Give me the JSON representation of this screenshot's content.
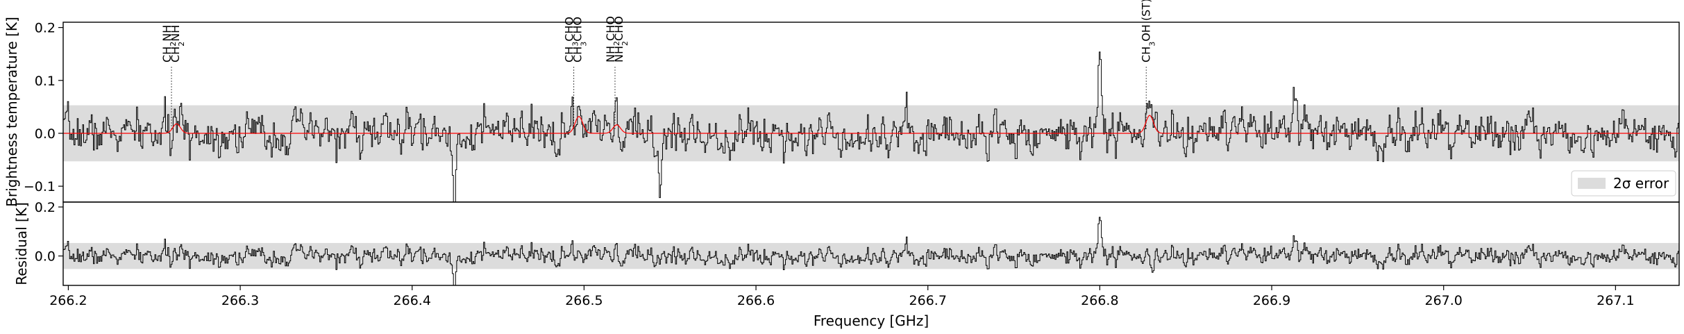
{
  "colors": {
    "spectrum": "#000000",
    "model": "#ff0000",
    "error_band": "#dcdcdc",
    "marker_line": "#555555"
  },
  "chart_data": [
    {
      "type": "line",
      "panel": "top",
      "xlim": [
        266.197,
        267.137
      ],
      "ylim": [
        -0.13,
        0.21
      ],
      "ylabel": "Brightness temperature [K]",
      "xlabel": "",
      "yticks": [
        -0.1,
        0.0,
        0.1,
        0.2
      ],
      "ytick_labels": [
        "−0.1",
        "0.0",
        "0.1",
        "0.2"
      ],
      "grid": false,
      "error_band": [
        -0.053,
        0.053
      ],
      "legend": {
        "position": "lower-right",
        "entries": [
          {
            "label": "2σ error"
          }
        ]
      },
      "series": [
        {
          "role": "observed",
          "style": "step",
          "noise_rms": 0.026,
          "line_color": "#000000"
        },
        {
          "role": "model",
          "style": "line",
          "line_color": "#ff0000"
        }
      ],
      "model_peaks": [
        {
          "x": 266.263,
          "y": 0.018
        },
        {
          "x": 266.497,
          "y": 0.032
        },
        {
          "x": 266.519,
          "y": 0.016
        },
        {
          "x": 266.829,
          "y": 0.034
        }
      ],
      "observed_features": [
        {
          "x": 266.8,
          "y": 0.15
        },
        {
          "x": 266.424,
          "y": -0.11
        },
        {
          "x": 266.544,
          "y": -0.1
        },
        {
          "x": 266.913,
          "y": 0.075
        }
      ],
      "line_markers": [
        {
          "x": 266.26,
          "label_main": "CH",
          "label_sub": "2",
          "label_rest": "NH"
        },
        {
          "x": 266.26,
          "label_main": "CH",
          "label_sub": "2",
          "label_rest": "NH"
        },
        {
          "x": 266.494,
          "label_main": "CH",
          "label_sub": "3",
          "label_rest": "CHO"
        },
        {
          "x": 266.494,
          "label_main": "CH",
          "label_sub": "3",
          "label_rest": "CHO"
        },
        {
          "x": 266.518,
          "label_main": "NH",
          "label_sub": "2",
          "label_rest": "CHO"
        },
        {
          "x": 266.518,
          "label_main": "NH",
          "label_sub": "2",
          "label_rest": "CHO"
        },
        {
          "x": 266.827,
          "label_main": "CH",
          "label_sub": "3",
          "label_rest": "OH (ST)"
        }
      ]
    },
    {
      "type": "line",
      "panel": "bottom",
      "xlim": [
        266.197,
        267.137
      ],
      "ylim": [
        -0.12,
        0.22
      ],
      "ylabel": "Residual [K]",
      "xlabel": "Frequency [GHz]",
      "yticks": [
        0.0,
        0.2
      ],
      "ytick_labels": [
        "0.0",
        "0.2"
      ],
      "xticks": [
        266.2,
        266.3,
        266.4,
        266.5,
        266.6,
        266.7,
        266.8,
        266.9,
        267.0,
        267.1
      ],
      "xtick_labels": [
        "266.2",
        "266.3",
        "266.4",
        "266.5",
        "266.6",
        "266.7",
        "266.8",
        "266.9",
        "267.0",
        "267.1"
      ],
      "grid": false,
      "error_band": [
        -0.053,
        0.053
      ],
      "series": [
        {
          "role": "residual",
          "style": "step",
          "noise_rms": 0.024,
          "line_color": "#000000"
        }
      ],
      "observed_features": [
        {
          "x": 266.8,
          "y": 0.155
        },
        {
          "x": 266.424,
          "y": -0.1
        },
        {
          "x": 266.83,
          "y": -0.08
        },
        {
          "x": 266.913,
          "y": 0.07
        }
      ]
    }
  ]
}
